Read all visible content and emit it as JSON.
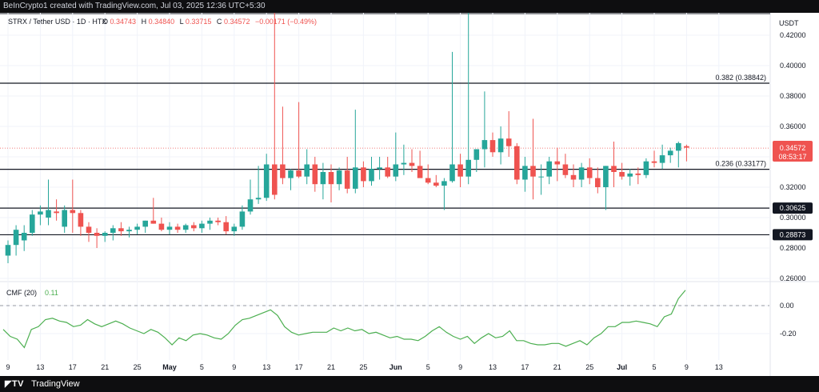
{
  "header": {
    "credit": "BeInCrypto1 created with TradingView.com, Jul 03, 2025 12:36 UTC+5:30"
  },
  "footer": {
    "brand": "TradingView"
  },
  "legend": {
    "symbol": "STRX / Tether USD · 1D · HTX",
    "open_label": "O",
    "open": "0.34743",
    "high_label": "H",
    "high": "0.34840",
    "low_label": "L",
    "low": "0.33715",
    "close_label": "C",
    "close": "0.34572",
    "change": "−0.00171 (−0.49%)"
  },
  "currency": "USDT",
  "price_badge": {
    "price": "0.34572",
    "countdown": "08:53:17"
  },
  "cmf_label": {
    "name": "CMF (20)",
    "value": "0.11"
  },
  "colors": {
    "up": "#26a69a",
    "down": "#ef5350",
    "cmf": "#4caf50",
    "level": "#131722",
    "grid": "#f0f3fa"
  },
  "chart_data": [
    {
      "type": "candlestick",
      "title": "STRX / Tether USD · 1D · HTX",
      "ylabel": "USDT",
      "ylim": [
        0.25,
        0.435
      ],
      "y_ticks": [
        "0.26000",
        "0.28000",
        "0.30000",
        "0.32000",
        "0.34000",
        "0.36000",
        "0.38000",
        "0.40000",
        "0.42000"
      ],
      "x_ticks": [
        "9",
        "13",
        "17",
        "21",
        "25",
        "May",
        "5",
        "9",
        "13",
        "17",
        "21",
        "25",
        "Jun",
        "5",
        "9",
        "13",
        "17",
        "21",
        "25",
        "Jul",
        "5",
        "9",
        "13"
      ],
      "levels": [
        {
          "value": 0.38842,
          "label": "0.382 (0.38842)",
          "style": "text"
        },
        {
          "value": 0.33177,
          "label": "0.236 (0.33177)",
          "style": "text"
        },
        {
          "value": 0.30625,
          "label": "0.30625",
          "style": "badge"
        },
        {
          "value": 0.28873,
          "label": "0.28873",
          "style": "badge"
        }
      ],
      "candles": [
        [
          0.275,
          0.285,
          0.27,
          0.282
        ],
        [
          0.282,
          0.295,
          0.275,
          0.292
        ],
        [
          0.285,
          0.295,
          0.278,
          0.29
        ],
        [
          0.29,
          0.305,
          0.288,
          0.302
        ],
        [
          0.302,
          0.308,
          0.295,
          0.304
        ],
        [
          0.3,
          0.325,
          0.295,
          0.305
        ],
        [
          0.304,
          0.312,
          0.298,
          0.303
        ],
        [
          0.294,
          0.308,
          0.29,
          0.305
        ],
        [
          0.305,
          0.325,
          0.29,
          0.303
        ],
        [
          0.303,
          0.305,
          0.288,
          0.294
        ],
        [
          0.294,
          0.297,
          0.284,
          0.29
        ],
        [
          0.29,
          0.293,
          0.28,
          0.288
        ],
        [
          0.288,
          0.291,
          0.284,
          0.29
        ],
        [
          0.29,
          0.295,
          0.285,
          0.293
        ],
        [
          0.293,
          0.297,
          0.288,
          0.291
        ],
        [
          0.291,
          0.294,
          0.287,
          0.292
        ],
        [
          0.292,
          0.296,
          0.289,
          0.294
        ],
        [
          0.294,
          0.298,
          0.29,
          0.298
        ],
        [
          0.298,
          0.313,
          0.296,
          0.296
        ],
        [
          0.296,
          0.3,
          0.291,
          0.292
        ],
        [
          0.292,
          0.297,
          0.289,
          0.294
        ],
        [
          0.294,
          0.296,
          0.29,
          0.292
        ],
        [
          0.292,
          0.296,
          0.29,
          0.295
        ],
        [
          0.295,
          0.297,
          0.291,
          0.293
        ],
        [
          0.293,
          0.298,
          0.29,
          0.296
        ],
        [
          0.296,
          0.3,
          0.292,
          0.298
        ],
        [
          0.298,
          0.3,
          0.295,
          0.297
        ],
        [
          0.297,
          0.301,
          0.289,
          0.291
        ],
        [
          0.291,
          0.296,
          0.288,
          0.294
        ],
        [
          0.294,
          0.308,
          0.292,
          0.304
        ],
        [
          0.304,
          0.325,
          0.302,
          0.312
        ],
        [
          0.312,
          0.334,
          0.309,
          0.313
        ],
        [
          0.313,
          0.342,
          0.311,
          0.335
        ],
        [
          0.335,
          0.435,
          0.312,
          0.315
        ],
        [
          0.335,
          0.373,
          0.322,
          0.326
        ],
        [
          0.326,
          0.332,
          0.318,
          0.331
        ],
        [
          0.331,
          0.376,
          0.326,
          0.327
        ],
        [
          0.327,
          0.345,
          0.322,
          0.335
        ],
        [
          0.335,
          0.34,
          0.317,
          0.322
        ],
        [
          0.322,
          0.336,
          0.312,
          0.33
        ],
        [
          0.33,
          0.335,
          0.31,
          0.322
        ],
        [
          0.322,
          0.333,
          0.318,
          0.331
        ],
        [
          0.331,
          0.34,
          0.316,
          0.319
        ],
        [
          0.319,
          0.371,
          0.316,
          0.333
        ],
        [
          0.333,
          0.337,
          0.32,
          0.324
        ],
        [
          0.324,
          0.34,
          0.321,
          0.332
        ],
        [
          0.332,
          0.34,
          0.325,
          0.333
        ],
        [
          0.333,
          0.34,
          0.326,
          0.327
        ],
        [
          0.327,
          0.356,
          0.324,
          0.335
        ],
        [
          0.335,
          0.348,
          0.328,
          0.336
        ],
        [
          0.336,
          0.345,
          0.33,
          0.334
        ],
        [
          0.334,
          0.344,
          0.327,
          0.326
        ],
        [
          0.326,
          0.335,
          0.322,
          0.323
        ],
        [
          0.323,
          0.328,
          0.32,
          0.321
        ],
        [
          0.321,
          0.326,
          0.305,
          0.324
        ],
        [
          0.324,
          0.409,
          0.323,
          0.335
        ],
        [
          0.335,
          0.342,
          0.32,
          0.327
        ],
        [
          0.327,
          0.435,
          0.322,
          0.338
        ],
        [
          0.338,
          0.345,
          0.33,
          0.345
        ],
        [
          0.345,
          0.383,
          0.333,
          0.351
        ],
        [
          0.351,
          0.356,
          0.34,
          0.343
        ],
        [
          0.343,
          0.36,
          0.335,
          0.352
        ],
        [
          0.352,
          0.37,
          0.34,
          0.347
        ],
        [
          0.347,
          0.349,
          0.322,
          0.325
        ],
        [
          0.325,
          0.34,
          0.317,
          0.334
        ],
        [
          0.334,
          0.365,
          0.312,
          0.327
        ],
        [
          0.327,
          0.335,
          0.315,
          0.327
        ],
        [
          0.327,
          0.34,
          0.322,
          0.337
        ],
        [
          0.337,
          0.346,
          0.324,
          0.335
        ],
        [
          0.335,
          0.342,
          0.326,
          0.328
        ],
        [
          0.328,
          0.335,
          0.32,
          0.325
        ],
        [
          0.325,
          0.336,
          0.32,
          0.333
        ],
        [
          0.333,
          0.339,
          0.322,
          0.326
        ],
        [
          0.326,
          0.333,
          0.316,
          0.32
        ],
        [
          0.32,
          0.334,
          0.305,
          0.334
        ],
        [
          0.334,
          0.35,
          0.32,
          0.33
        ],
        [
          0.33,
          0.336,
          0.325,
          0.327
        ],
        [
          0.327,
          0.332,
          0.321,
          0.329
        ],
        [
          0.329,
          0.333,
          0.322,
          0.328
        ],
        [
          0.328,
          0.339,
          0.326,
          0.337
        ],
        [
          0.337,
          0.344,
          0.333,
          0.336
        ],
        [
          0.336,
          0.348,
          0.332,
          0.341
        ],
        [
          0.341,
          0.346,
          0.336,
          0.344
        ],
        [
          0.344,
          0.35,
          0.333,
          0.349
        ],
        [
          0.347,
          0.348,
          0.337,
          0.346
        ]
      ]
    },
    {
      "type": "line",
      "title": "CMF (20)",
      "ylim": [
        -0.31,
        0.12
      ],
      "y_ticks": [
        "0.00",
        "-0.20"
      ],
      "zero_line": 0.0,
      "values": [
        -0.17,
        -0.22,
        -0.24,
        -0.3,
        -0.17,
        -0.15,
        -0.1,
        -0.09,
        -0.11,
        -0.12,
        -0.15,
        -0.14,
        -0.1,
        -0.13,
        -0.15,
        -0.13,
        -0.11,
        -0.13,
        -0.16,
        -0.18,
        -0.2,
        -0.17,
        -0.19,
        -0.23,
        -0.28,
        -0.23,
        -0.25,
        -0.21,
        -0.2,
        -0.21,
        -0.23,
        -0.24,
        -0.2,
        -0.14,
        -0.1,
        -0.09,
        -0.07,
        -0.05,
        -0.03,
        -0.07,
        -0.15,
        -0.19,
        -0.21,
        -0.2,
        -0.19,
        -0.19,
        -0.19,
        -0.16,
        -0.18,
        -0.16,
        -0.18,
        -0.17,
        -0.2,
        -0.19,
        -0.21,
        -0.23,
        -0.22,
        -0.24,
        -0.24,
        -0.25,
        -0.22,
        -0.18,
        -0.15,
        -0.19,
        -0.22,
        -0.24,
        -0.22,
        -0.27,
        -0.23,
        -0.2,
        -0.23,
        -0.22,
        -0.18,
        -0.25,
        -0.25,
        -0.27,
        -0.28,
        -0.28,
        -0.27,
        -0.27,
        -0.29,
        -0.27,
        -0.25,
        -0.28,
        -0.23,
        -0.2,
        -0.15,
        -0.15,
        -0.12,
        -0.12,
        -0.11,
        -0.12,
        -0.13,
        -0.15,
        -0.08,
        -0.06,
        0.05,
        0.11
      ]
    }
  ]
}
